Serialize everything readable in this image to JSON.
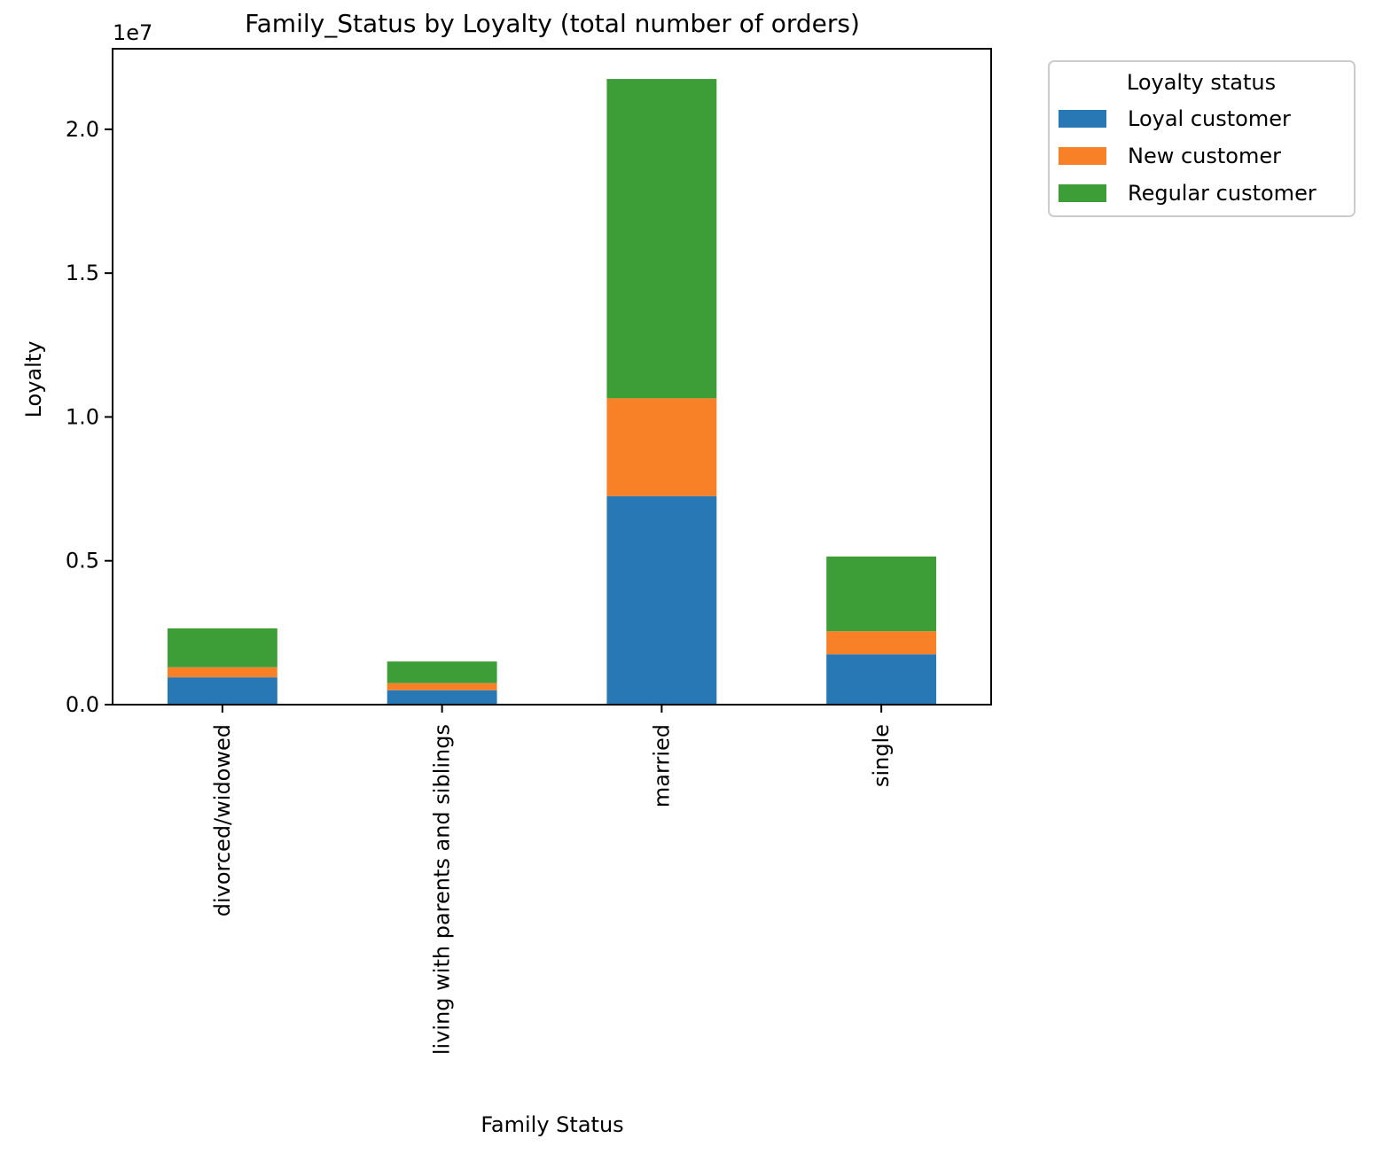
{
  "chart_data": {
    "type": "bar",
    "stacked": true,
    "title": "Family_Status by Loyalty (total number of orders)",
    "xlabel": "Family Status",
    "ylabel": "Loyalty",
    "offset_label": "1e7",
    "ylim": [
      0,
      2.28
    ],
    "y_ticks": [
      0.0,
      0.5,
      1.0,
      1.5,
      2.0
    ],
    "y_tick_labels": [
      "0.0",
      "0.5",
      "1.0",
      "1.5",
      "2.0"
    ],
    "categories": [
      "divorced/widowed",
      "living with parents and siblings",
      "married",
      "single"
    ],
    "series": [
      {
        "name": "Loyal customer",
        "color": "#2878b5",
        "values": [
          0.095,
          0.05,
          0.725,
          0.175
        ]
      },
      {
        "name": "New customer",
        "color": "#f88127",
        "values": [
          0.035,
          0.025,
          0.34,
          0.08
        ]
      },
      {
        "name": "Regular customer",
        "color": "#3d9d36",
        "values": [
          0.135,
          0.075,
          1.11,
          0.26
        ]
      }
    ],
    "legend": {
      "title": "Loyalty status",
      "position": "outside-top-right"
    },
    "grid": false
  }
}
